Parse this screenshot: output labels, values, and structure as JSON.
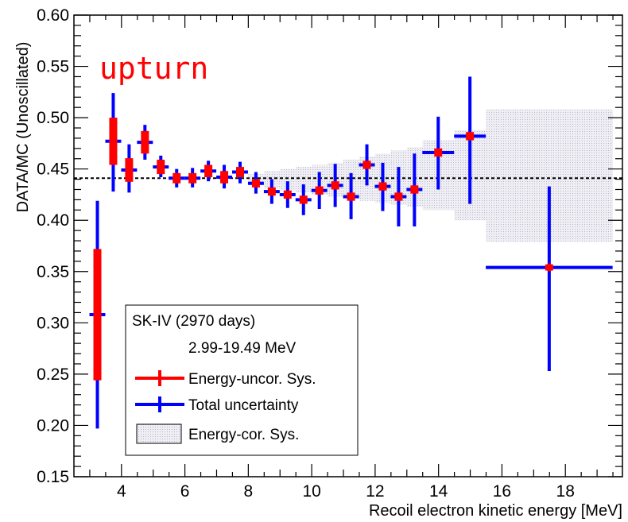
{
  "chart_data": {
    "type": "scatter",
    "xlabel": "Recoil electron kinetic energy [MeV]",
    "ylabel": "DATA/MC (Unoscillated)",
    "xlim": [
      2.5,
      19.8
    ],
    "ylim": [
      0.15,
      0.6
    ],
    "x_ticks": [
      4,
      6,
      8,
      10,
      12,
      14,
      16,
      18
    ],
    "y_ticks": [
      0.15,
      0.2,
      0.25,
      0.3,
      0.35,
      0.4,
      0.45,
      0.5,
      0.55,
      0.6
    ],
    "y_tick_labels": [
      "0.15",
      "0.20",
      "0.25",
      "0.30",
      "0.35",
      "0.40",
      "0.45",
      "0.50",
      "0.55",
      "0.60"
    ],
    "reference_line": 0.441,
    "annotation": "upturn",
    "points": [
      {
        "x": 3.24,
        "xlo": 2.99,
        "xhi": 3.49,
        "y": 0.308,
        "stat_lo": 0.197,
        "stat_hi": 0.419,
        "unc_lo": 0.243,
        "unc_hi": 0.371
      },
      {
        "x": 3.74,
        "xlo": 3.49,
        "xhi": 3.99,
        "y": 0.477,
        "stat_lo": 0.428,
        "stat_hi": 0.524,
        "unc_lo": 0.453,
        "unc_hi": 0.499
      },
      {
        "x": 4.24,
        "xlo": 3.99,
        "xhi": 4.49,
        "y": 0.449,
        "stat_lo": 0.427,
        "stat_hi": 0.474,
        "unc_lo": 0.438,
        "unc_hi": 0.461
      },
      {
        "x": 4.74,
        "xlo": 4.49,
        "xhi": 4.99,
        "y": 0.476,
        "stat_lo": 0.459,
        "stat_hi": 0.493,
        "unc_lo": 0.465,
        "unc_hi": 0.487
      },
      {
        "x": 5.24,
        "xlo": 4.99,
        "xhi": 5.49,
        "y": 0.452,
        "stat_lo": 0.442,
        "stat_hi": 0.463,
        "unc_lo": 0.445,
        "unc_hi": 0.459
      },
      {
        "x": 5.74,
        "xlo": 5.49,
        "xhi": 5.99,
        "y": 0.441,
        "stat_lo": 0.432,
        "stat_hi": 0.45,
        "unc_lo": 0.436,
        "unc_hi": 0.446
      },
      {
        "x": 6.24,
        "xlo": 5.99,
        "xhi": 6.49,
        "y": 0.441,
        "stat_lo": 0.432,
        "stat_hi": 0.451,
        "unc_lo": 0.436,
        "unc_hi": 0.446
      },
      {
        "x": 6.74,
        "xlo": 6.49,
        "xhi": 6.99,
        "y": 0.448,
        "stat_lo": 0.438,
        "stat_hi": 0.458,
        "unc_lo": 0.442,
        "unc_hi": 0.454
      },
      {
        "x": 7.24,
        "xlo": 6.99,
        "xhi": 7.49,
        "y": 0.442,
        "stat_lo": 0.431,
        "stat_hi": 0.454,
        "unc_lo": 0.436,
        "unc_hi": 0.448
      },
      {
        "x": 7.74,
        "xlo": 7.49,
        "xhi": 7.99,
        "y": 0.447,
        "stat_lo": 0.436,
        "stat_hi": 0.457,
        "unc_lo": 0.442,
        "unc_hi": 0.452
      },
      {
        "x": 8.24,
        "xlo": 7.99,
        "xhi": 8.49,
        "y": 0.436,
        "stat_lo": 0.426,
        "stat_hi": 0.447,
        "unc_lo": 0.432,
        "unc_hi": 0.44
      },
      {
        "x": 8.74,
        "xlo": 8.49,
        "xhi": 8.99,
        "y": 0.428,
        "stat_lo": 0.416,
        "stat_hi": 0.44,
        "unc_lo": 0.424,
        "unc_hi": 0.432
      },
      {
        "x": 9.24,
        "xlo": 8.99,
        "xhi": 9.49,
        "y": 0.425,
        "stat_lo": 0.412,
        "stat_hi": 0.438,
        "unc_lo": 0.421,
        "unc_hi": 0.429
      },
      {
        "x": 9.74,
        "xlo": 9.49,
        "xhi": 9.99,
        "y": 0.42,
        "stat_lo": 0.405,
        "stat_hi": 0.435,
        "unc_lo": 0.416,
        "unc_hi": 0.424
      },
      {
        "x": 10.24,
        "xlo": 9.99,
        "xhi": 10.49,
        "y": 0.429,
        "stat_lo": 0.411,
        "stat_hi": 0.447,
        "unc_lo": 0.425,
        "unc_hi": 0.433
      },
      {
        "x": 10.74,
        "xlo": 10.49,
        "xhi": 10.99,
        "y": 0.434,
        "stat_lo": 0.413,
        "stat_hi": 0.455,
        "unc_lo": 0.43,
        "unc_hi": 0.438
      },
      {
        "x": 11.24,
        "xlo": 10.99,
        "xhi": 11.49,
        "y": 0.423,
        "stat_lo": 0.401,
        "stat_hi": 0.446,
        "unc_lo": 0.419,
        "unc_hi": 0.427
      },
      {
        "x": 11.74,
        "xlo": 11.49,
        "xhi": 11.99,
        "y": 0.454,
        "stat_lo": 0.434,
        "stat_hi": 0.474,
        "unc_lo": 0.45,
        "unc_hi": 0.458
      },
      {
        "x": 12.24,
        "xlo": 11.99,
        "xhi": 12.49,
        "y": 0.433,
        "stat_lo": 0.409,
        "stat_hi": 0.456,
        "unc_lo": 0.429,
        "unc_hi": 0.437
      },
      {
        "x": 12.74,
        "xlo": 12.49,
        "xhi": 12.99,
        "y": 0.423,
        "stat_lo": 0.394,
        "stat_hi": 0.452,
        "unc_lo": 0.419,
        "unc_hi": 0.427
      },
      {
        "x": 13.24,
        "xlo": 12.99,
        "xhi": 13.49,
        "y": 0.43,
        "stat_lo": 0.394,
        "stat_hi": 0.465,
        "unc_lo": 0.426,
        "unc_hi": 0.434
      },
      {
        "x": 13.99,
        "xlo": 13.49,
        "xhi": 14.49,
        "y": 0.466,
        "stat_lo": 0.43,
        "stat_hi": 0.501,
        "unc_lo": 0.462,
        "unc_hi": 0.47
      },
      {
        "x": 14.99,
        "xlo": 14.49,
        "xhi": 15.49,
        "y": 0.482,
        "stat_lo": 0.416,
        "stat_hi": 0.54,
        "unc_lo": 0.478,
        "unc_hi": 0.486
      },
      {
        "x": 17.49,
        "xlo": 15.49,
        "xhi": 19.49,
        "y": 0.354,
        "stat_lo": 0.253,
        "stat_hi": 0.433,
        "unc_lo": 0.351,
        "unc_hi": 0.357
      }
    ],
    "cor_sys_band": [
      {
        "x0": 8.0,
        "x1": 8.5,
        "lo": 0.434,
        "hi": 0.445
      },
      {
        "x0": 8.5,
        "x1": 9.0,
        "lo": 0.431,
        "hi": 0.448
      },
      {
        "x0": 9.0,
        "x1": 9.5,
        "lo": 0.429,
        "hi": 0.45
      },
      {
        "x0": 9.5,
        "x1": 10.0,
        "lo": 0.427,
        "hi": 0.452
      },
      {
        "x0": 10.0,
        "x1": 10.5,
        "lo": 0.425,
        "hi": 0.454
      },
      {
        "x0": 10.5,
        "x1": 11.0,
        "lo": 0.423,
        "hi": 0.456
      },
      {
        "x0": 11.0,
        "x1": 11.5,
        "lo": 0.421,
        "hi": 0.459
      },
      {
        "x0": 11.5,
        "x1": 12.0,
        "lo": 0.419,
        "hi": 0.462
      },
      {
        "x0": 12.0,
        "x1": 12.5,
        "lo": 0.417,
        "hi": 0.465
      },
      {
        "x0": 12.5,
        "x1": 13.0,
        "lo": 0.415,
        "hi": 0.468
      },
      {
        "x0": 13.0,
        "x1": 13.5,
        "lo": 0.413,
        "hi": 0.471
      },
      {
        "x0": 13.5,
        "x1": 14.5,
        "lo": 0.41,
        "hi": 0.478
      },
      {
        "x0": 14.5,
        "x1": 15.5,
        "lo": 0.4,
        "hi": 0.488
      },
      {
        "x0": 15.5,
        "x1": 19.5,
        "lo": 0.379,
        "hi": 0.508
      }
    ],
    "legend": {
      "title": "SK-IV (2970 days)",
      "subtitle": "2.99-19.49 MeV",
      "entries": [
        "Energy-uncor. Sys.",
        "Total uncertainty",
        "Energy-cor. Sys."
      ]
    },
    "colors": {
      "total": "#0000ff",
      "uncor": "#ff0000",
      "band": "#e4e4ec",
      "annotation": "#ff0000"
    }
  }
}
